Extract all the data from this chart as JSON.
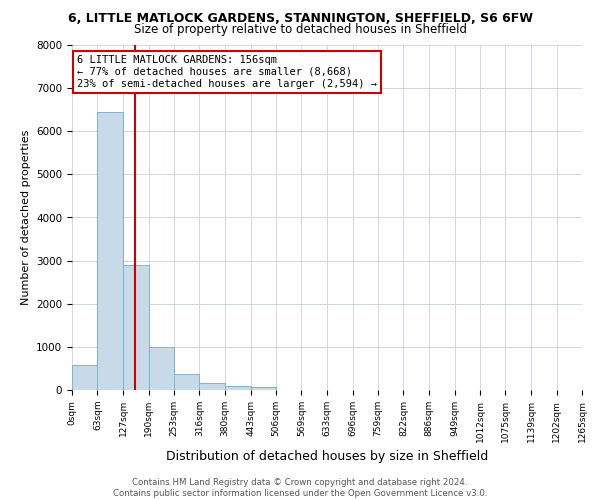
{
  "title": "6, LITTLE MATLOCK GARDENS, STANNINGTON, SHEFFIELD, S6 6FW",
  "subtitle": "Size of property relative to detached houses in Sheffield",
  "xlabel": "Distribution of detached houses by size in Sheffield",
  "ylabel": "Number of detached properties",
  "bar_edges": [
    0,
    63,
    127,
    190,
    253,
    316,
    380,
    443,
    506,
    569,
    633,
    696,
    759,
    822,
    886,
    949,
    1012,
    1075,
    1139,
    1202,
    1265
  ],
  "bar_heights": [
    580,
    6450,
    2900,
    1000,
    380,
    170,
    100,
    60,
    0,
    0,
    0,
    0,
    0,
    0,
    0,
    0,
    0,
    0,
    0,
    0
  ],
  "bar_color": "#c8d9e8",
  "bar_edge_color": "#7ab4d4",
  "property_line_x": 156,
  "property_line_color": "#cc0000",
  "ylim": [
    0,
    8000
  ],
  "annotation_line1": "6 LITTLE MATLOCK GARDENS: 156sqm",
  "annotation_line2": "← 77% of detached houses are smaller (8,668)",
  "annotation_line3": "23% of semi-detached houses are larger (2,594) →",
  "annotation_box_color": "#cc0000",
  "footer_text": "Contains HM Land Registry data © Crown copyright and database right 2024.\nContains public sector information licensed under the Open Government Licence v3.0.",
  "tick_labels": [
    "0sqm",
    "63sqm",
    "127sqm",
    "190sqm",
    "253sqm",
    "316sqm",
    "380sqm",
    "443sqm",
    "506sqm",
    "569sqm",
    "633sqm",
    "696sqm",
    "759sqm",
    "822sqm",
    "886sqm",
    "949sqm",
    "1012sqm",
    "1075sqm",
    "1139sqm",
    "1202sqm",
    "1265sqm"
  ],
  "grid_color": "#cdd8e4",
  "background_color": "#ffffff",
  "title_fontsize": 9,
  "subtitle_fontsize": 8.5,
  "ylabel_fontsize": 8,
  "xlabel_fontsize": 9
}
